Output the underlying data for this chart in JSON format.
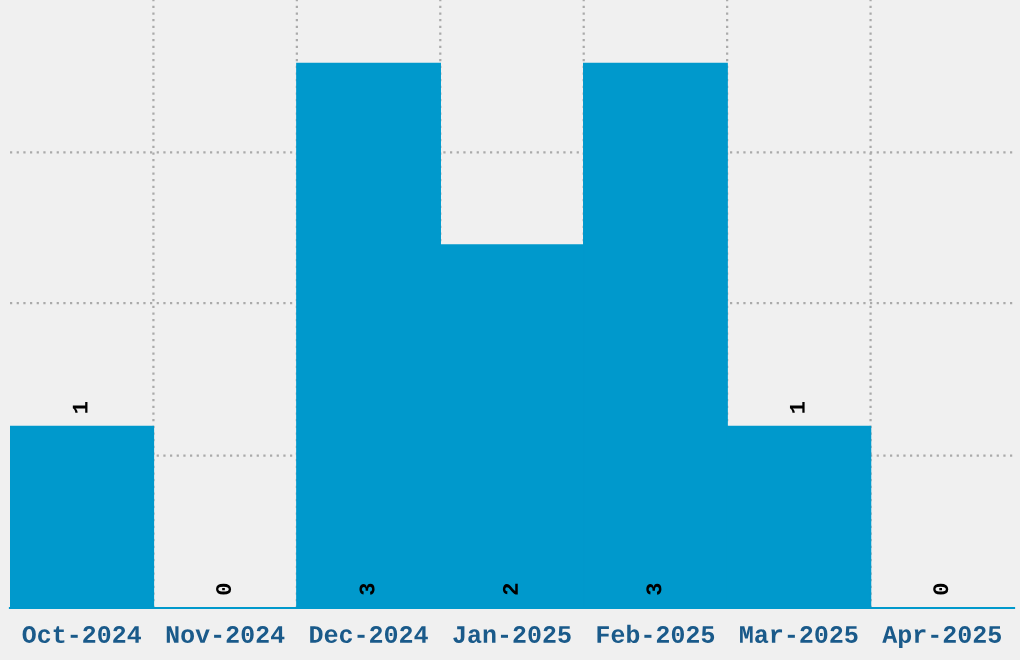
{
  "chart_data": {
    "type": "bar",
    "categories": [
      "Oct-2024",
      "Nov-2024",
      "Dec-2024",
      "Jan-2025",
      "Feb-2025",
      "Mar-2025",
      "Apr-2025"
    ],
    "values": [
      1,
      0,
      3,
      2,
      3,
      1,
      0
    ],
    "color": "#0099cc",
    "ylim": [
      0,
      3.35
    ],
    "yticks": [
      {
        "value": 0,
        "label": null
      },
      {
        "value": 0.84,
        "label": null
      },
      {
        "value": 1.68,
        "label": null
      },
      {
        "value": 2.51,
        "label": null
      }
    ],
    "tick_labels": "x",
    "grid": true,
    "data_labels": true
  }
}
